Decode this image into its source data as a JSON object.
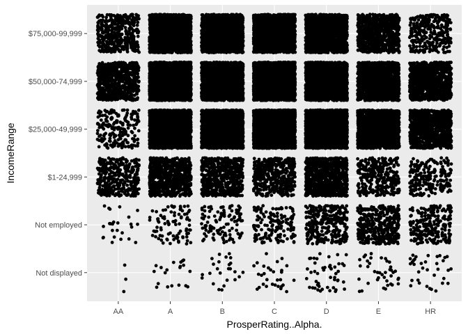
{
  "chart_data": {
    "type": "scatter",
    "jitter": true,
    "title": "",
    "xlabel": "ProsperRating..Alpha.",
    "ylabel": "IncomeRange",
    "x_categories": [
      "AA",
      "A",
      "B",
      "C",
      "D",
      "E",
      "HR"
    ],
    "y_categories": [
      "Not displayed",
      "Not employed",
      "$1-24,999",
      "$25,000-49,999",
      "$50,000-74,999",
      "$75,000-99,999"
    ],
    "approx_point_density": [
      [
        3,
        20,
        25,
        30,
        50,
        40,
        35
      ],
      [
        25,
        90,
        110,
        150,
        320,
        380,
        230
      ],
      [
        380,
        700,
        600,
        450,
        850,
        300,
        220
      ],
      [
        200,
        2000,
        2600,
        3200,
        3000,
        1500,
        1000
      ],
      [
        700,
        2600,
        2500,
        2700,
        2300,
        1300,
        900
      ],
      [
        400,
        2000,
        1700,
        1800,
        1500,
        800,
        300
      ]
    ],
    "grid": true,
    "legend": "none",
    "colors": {
      "panel": "#ebebeb",
      "grid": "#ffffff",
      "point": "#000000",
      "tick_text": "#4d4d4d",
      "axis_title": "#000000"
    }
  }
}
